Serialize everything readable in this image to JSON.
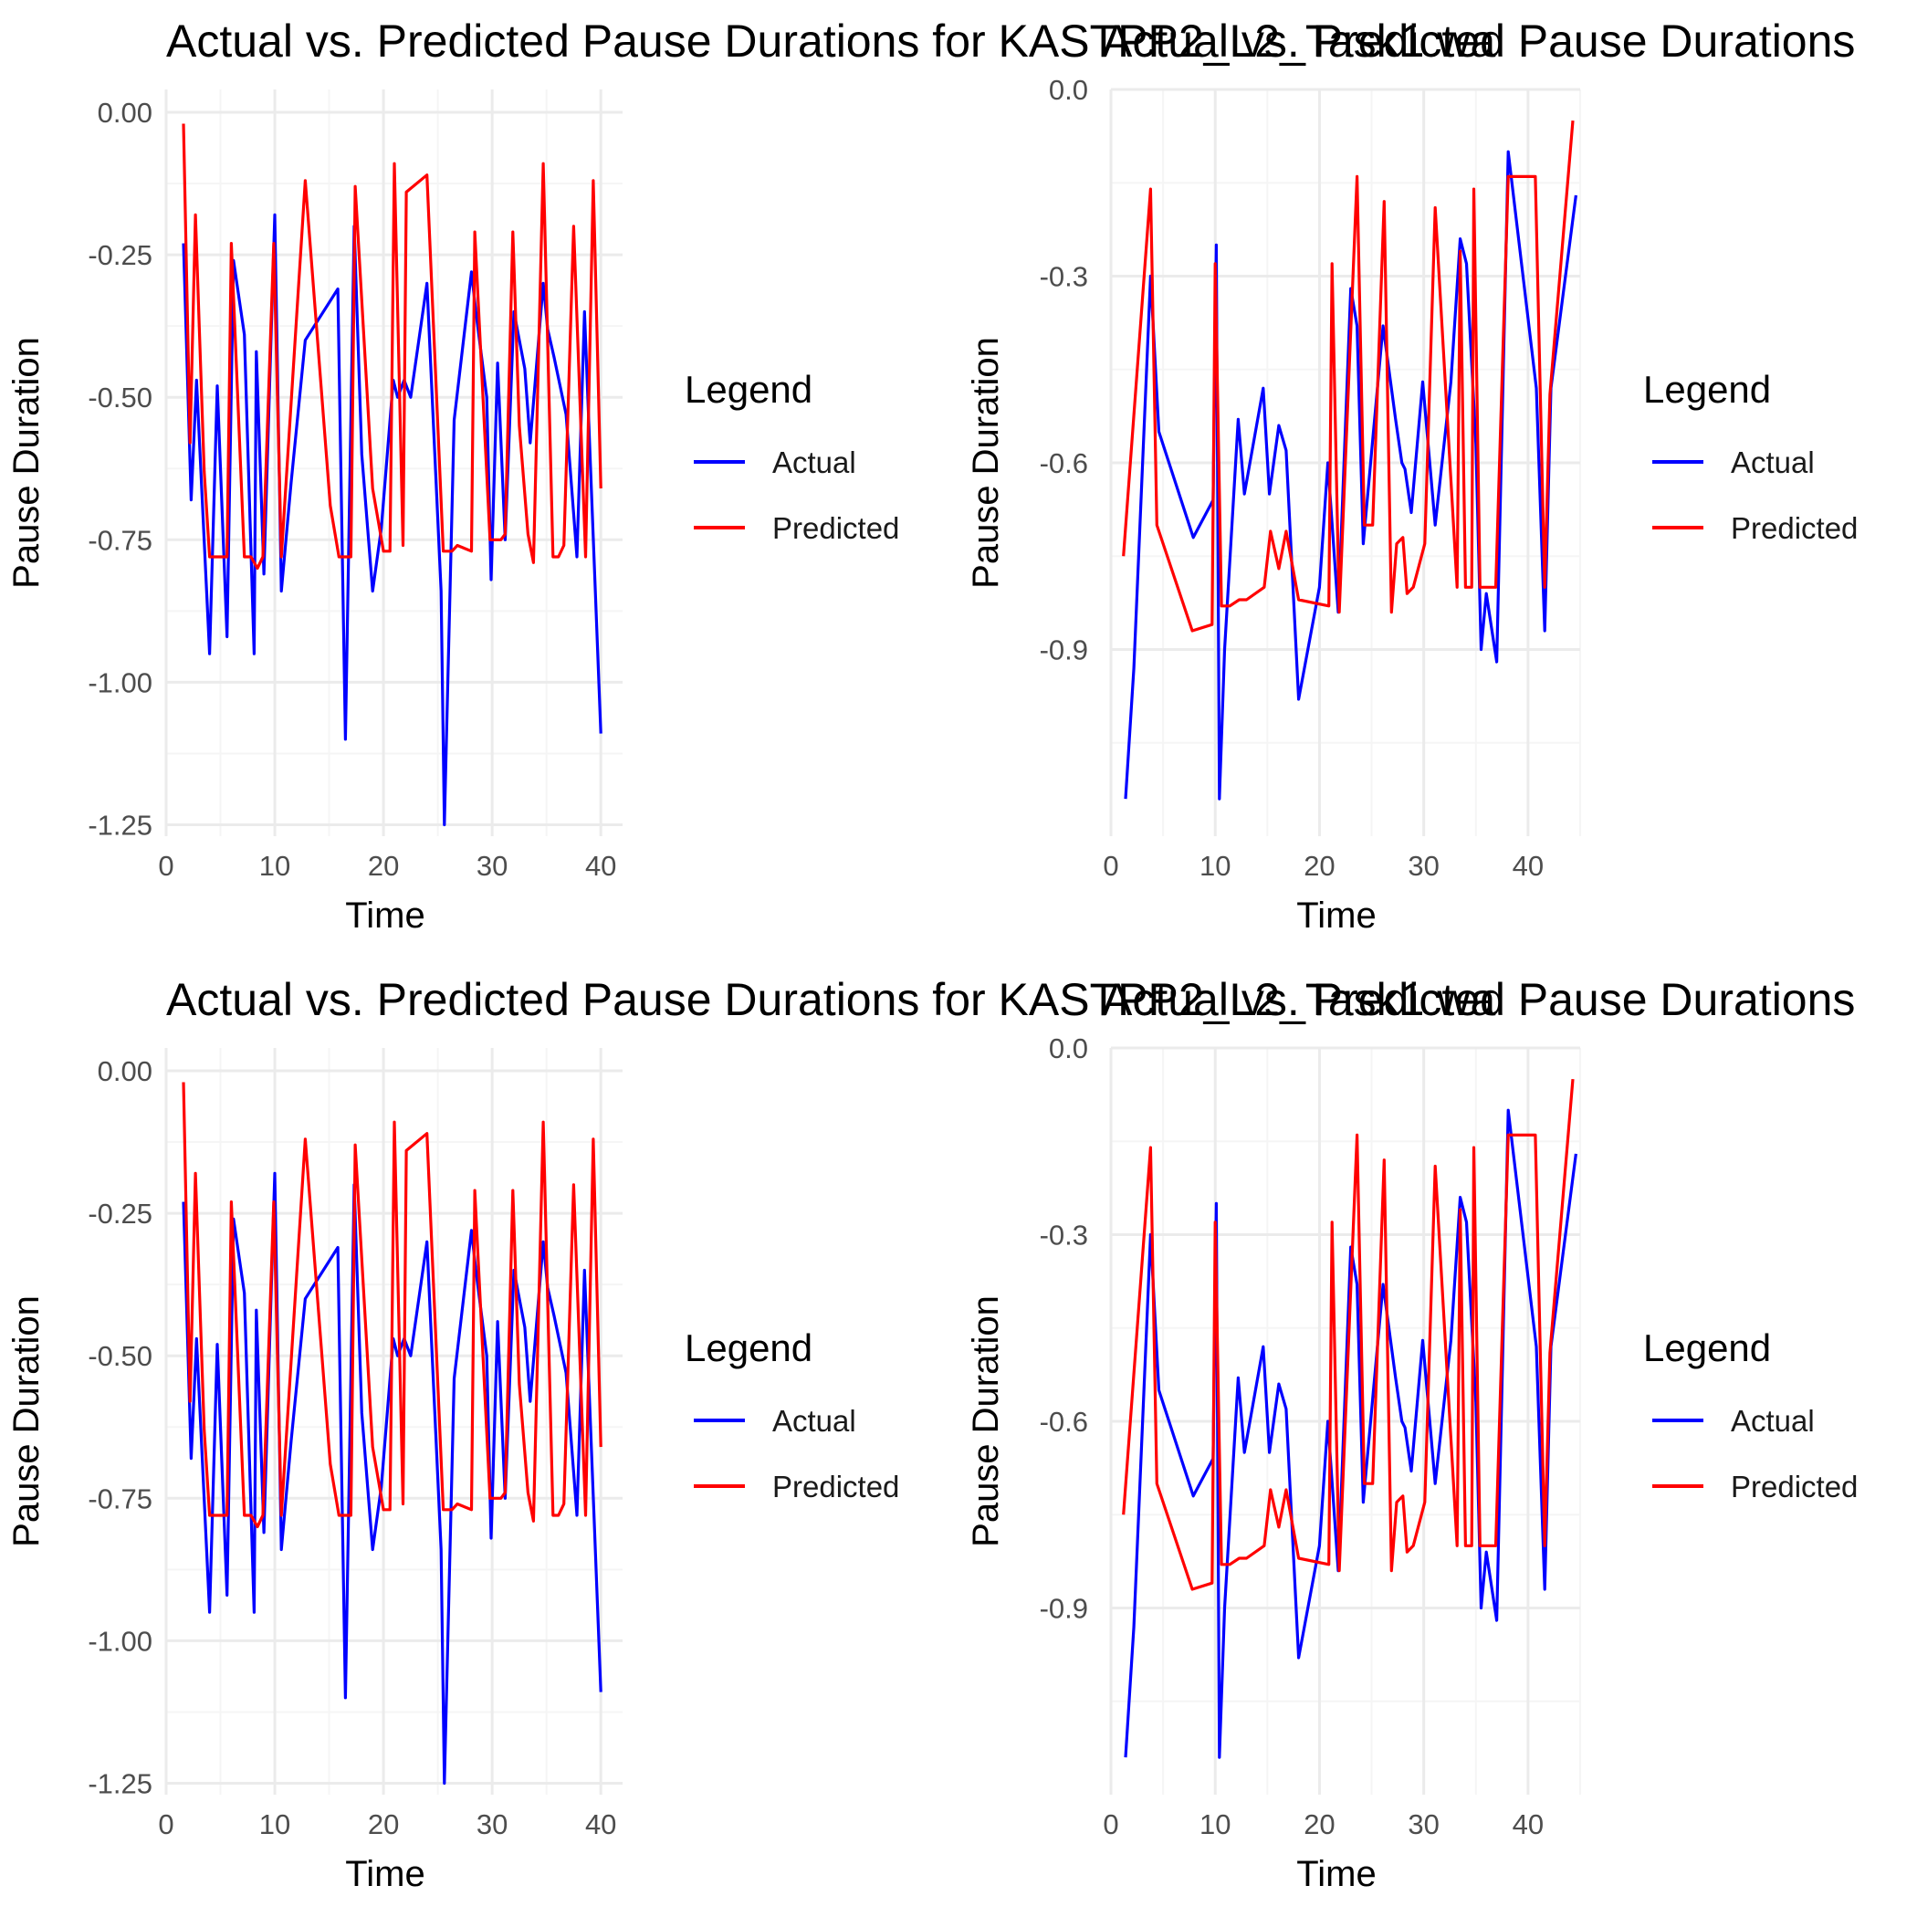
{
  "colors": {
    "actual": "#0000ff",
    "predicted": "#ff0000",
    "grid_major": "#ebebeb",
    "grid_minor": "#f5f5f5"
  },
  "chart_data": [
    {
      "type": "line",
      "title": "Actual vs. Predicted Pause Durations for KASTPP2_L2_Task1 wa",
      "xlabel": "Time",
      "ylabel": "Pause Duration",
      "xlim": [
        0,
        42
      ],
      "ylim": [
        -1.27,
        0.04
      ],
      "xticks": [
        "0",
        "10",
        "20",
        "30",
        "40"
      ],
      "yticks": [
        "0.00",
        "-0.25",
        "-0.50",
        "-0.75",
        "-1.00",
        "-1.25"
      ],
      "grid": true,
      "legend": {
        "title": "Legend",
        "position": "right",
        "entries": [
          "Actual",
          "Predicted"
        ]
      },
      "series": [
        {
          "name": "Actual",
          "color": "#0000ff",
          "x": [
            1.6,
            2.3,
            2.8,
            4.0,
            4.7,
            5.6,
            6.2,
            7.2,
            8.1,
            8.3,
            9.0,
            10.0,
            10.6,
            11.5,
            12.8,
            15.8,
            16.5,
            17.3,
            18.0,
            19.0,
            19.8,
            20.9,
            21.3,
            21.9,
            22.5,
            24.0,
            25.3,
            25.6,
            26.5,
            28.1,
            28.5,
            29.5,
            29.9,
            30.5,
            31.2,
            32.0,
            33.0,
            33.5,
            34.7,
            35.1,
            35.7,
            36.8,
            37.8,
            38.5,
            40.0
          ],
          "y": [
            -0.23,
            -0.68,
            -0.47,
            -0.95,
            -0.48,
            -0.92,
            -0.26,
            -0.39,
            -0.95,
            -0.42,
            -0.81,
            -0.18,
            -0.84,
            -0.65,
            -0.4,
            -0.31,
            -1.1,
            -0.2,
            -0.6,
            -0.84,
            -0.73,
            -0.47,
            -0.5,
            -0.47,
            -0.5,
            -0.3,
            -0.84,
            -1.25,
            -0.54,
            -0.28,
            -0.35,
            -0.5,
            -0.82,
            -0.44,
            -0.75,
            -0.35,
            -0.45,
            -0.58,
            -0.3,
            -0.38,
            -0.43,
            -0.53,
            -0.78,
            -0.35,
            -1.09
          ]
        },
        {
          "name": "Predicted",
          "color": "#ff0000",
          "x": [
            1.6,
            2.2,
            2.7,
            3.5,
            4.0,
            5.0,
            5.6,
            6.0,
            7.2,
            7.8,
            8.4,
            8.9,
            9.9,
            10.6,
            12.8,
            15.1,
            15.9,
            17.0,
            17.4,
            19.0,
            20.0,
            20.6,
            21.0,
            21.8,
            22.1,
            24.0,
            25.5,
            25.8,
            26.3,
            26.8,
            28.1,
            28.4,
            29.8,
            30.4,
            30.8,
            31.2,
            31.9,
            32.5,
            33.3,
            33.8,
            34.7,
            35.6,
            36.1,
            36.6,
            37.5,
            38.6,
            39.3,
            40.0
          ],
          "y": [
            -0.02,
            -0.58,
            -0.18,
            -0.63,
            -0.78,
            -0.78,
            -0.78,
            -0.23,
            -0.78,
            -0.78,
            -0.8,
            -0.78,
            -0.23,
            -0.78,
            -0.12,
            -0.69,
            -0.78,
            -0.78,
            -0.13,
            -0.66,
            -0.77,
            -0.77,
            -0.09,
            -0.76,
            -0.14,
            -0.11,
            -0.77,
            -0.77,
            -0.77,
            -0.76,
            -0.77,
            -0.21,
            -0.75,
            -0.75,
            -0.75,
            -0.74,
            -0.21,
            -0.55,
            -0.74,
            -0.79,
            -0.09,
            -0.78,
            -0.78,
            -0.76,
            -0.2,
            -0.78,
            -0.12,
            -0.66
          ]
        }
      ]
    },
    {
      "type": "line",
      "title": "Actual vs. Predicted Pause Durations",
      "xlabel": "Time",
      "ylabel": "Pause Duration",
      "xlim": [
        0,
        45
      ],
      "ylim": [
        -1.2,
        0.0
      ],
      "xticks": [
        "0",
        "10",
        "20",
        "30",
        "40"
      ],
      "yticks": [
        "0.0",
        "-0.3",
        "-0.6",
        "-0.9"
      ],
      "grid": true,
      "legend": {
        "title": "Legend",
        "position": "right",
        "entries": [
          "Actual",
          "Predicted"
        ]
      },
      "series": [
        {
          "name": "Actual",
          "color": "#0000ff",
          "x": [
            1.4,
            2.2,
            3.8,
            4.6,
            7.9,
            9.8,
            10.1,
            10.4,
            10.9,
            12.2,
            12.8,
            14.6,
            15.2,
            16.1,
            16.8,
            18.0,
            20.0,
            20.8,
            21.8,
            23.0,
            23.6,
            24.2,
            26.1,
            27.3,
            27.9,
            28.2,
            28.8,
            29.9,
            31.1,
            32.6,
            33.5,
            34.1,
            35.0,
            35.5,
            36.0,
            37.0,
            38.1,
            40.8,
            41.6,
            42.2,
            44.6
          ],
          "y": [
            -1.14,
            -0.93,
            -0.3,
            -0.55,
            -0.72,
            -0.66,
            -0.25,
            -1.14,
            -0.9,
            -0.53,
            -0.65,
            -0.48,
            -0.65,
            -0.54,
            -0.58,
            -0.98,
            -0.8,
            -0.6,
            -0.84,
            -0.32,
            -0.38,
            -0.73,
            -0.38,
            -0.53,
            -0.6,
            -0.61,
            -0.68,
            -0.47,
            -0.7,
            -0.47,
            -0.24,
            -0.28,
            -0.57,
            -0.9,
            -0.81,
            -0.92,
            -0.1,
            -0.48,
            -0.87,
            -0.48,
            -0.17
          ]
        },
        {
          "name": "Predicted",
          "color": "#ff0000",
          "x": [
            1.2,
            3.8,
            4.4,
            7.8,
            9.7,
            10.0,
            10.6,
            11.4,
            12.3,
            13.0,
            14.7,
            15.3,
            16.1,
            16.8,
            18.0,
            20.9,
            21.2,
            21.9,
            23.6,
            24.3,
            25.1,
            26.2,
            26.9,
            27.4,
            28.0,
            28.4,
            29.0,
            30.1,
            31.1,
            33.2,
            33.5,
            34.0,
            34.6,
            34.8,
            35.4,
            35.9,
            36.9,
            38.1,
            40.7,
            41.6,
            42.1,
            44.3
          ],
          "y": [
            -0.75,
            -0.16,
            -0.7,
            -0.87,
            -0.86,
            -0.28,
            -0.83,
            -0.83,
            -0.82,
            -0.82,
            -0.8,
            -0.71,
            -0.77,
            -0.71,
            -0.82,
            -0.83,
            -0.28,
            -0.84,
            -0.14,
            -0.7,
            -0.7,
            -0.18,
            -0.84,
            -0.73,
            -0.72,
            -0.81,
            -0.8,
            -0.73,
            -0.19,
            -0.8,
            -0.26,
            -0.8,
            -0.8,
            -0.16,
            -0.8,
            -0.8,
            -0.8,
            -0.14,
            -0.14,
            -0.8,
            -0.49,
            -0.05
          ]
        }
      ]
    },
    {
      "type": "line",
      "title": "Actual vs. Predicted Pause Durations for KASTPP2_L2_Task1 wa",
      "xlabel": "Time",
      "ylabel": "Pause Duration",
      "xlim": [
        0,
        42
      ],
      "ylim": [
        -1.27,
        0.04
      ],
      "xticks": [
        "0",
        "10",
        "20",
        "30",
        "40"
      ],
      "yticks": [
        "0.00",
        "-0.25",
        "-0.50",
        "-0.75",
        "-1.00",
        "-1.25"
      ],
      "grid": true,
      "legend": {
        "title": "Legend",
        "position": "right",
        "entries": [
          "Actual",
          "Predicted"
        ]
      },
      "series": [
        {
          "name": "Actual",
          "color": "#0000ff",
          "x": [
            1.6,
            2.3,
            2.8,
            4.0,
            4.7,
            5.6,
            6.2,
            7.2,
            8.1,
            8.3,
            9.0,
            10.0,
            10.6,
            11.5,
            12.8,
            15.8,
            16.5,
            17.3,
            18.0,
            19.0,
            19.8,
            20.9,
            21.3,
            21.9,
            22.5,
            24.0,
            25.3,
            25.6,
            26.5,
            28.1,
            28.5,
            29.5,
            29.9,
            30.5,
            31.2,
            32.0,
            33.0,
            33.5,
            34.7,
            35.1,
            35.7,
            36.8,
            37.8,
            38.5,
            40.0
          ],
          "y": [
            -0.23,
            -0.68,
            -0.47,
            -0.95,
            -0.48,
            -0.92,
            -0.26,
            -0.39,
            -0.95,
            -0.42,
            -0.81,
            -0.18,
            -0.84,
            -0.65,
            -0.4,
            -0.31,
            -1.1,
            -0.2,
            -0.6,
            -0.84,
            -0.73,
            -0.47,
            -0.5,
            -0.47,
            -0.5,
            -0.3,
            -0.84,
            -1.25,
            -0.54,
            -0.28,
            -0.35,
            -0.5,
            -0.82,
            -0.44,
            -0.75,
            -0.35,
            -0.45,
            -0.58,
            -0.3,
            -0.38,
            -0.43,
            -0.53,
            -0.78,
            -0.35,
            -1.09
          ]
        },
        {
          "name": "Predicted",
          "color": "#ff0000",
          "x": [
            1.6,
            2.2,
            2.7,
            3.5,
            4.0,
            5.0,
            5.6,
            6.0,
            7.2,
            7.8,
            8.4,
            8.9,
            9.9,
            10.6,
            12.8,
            15.1,
            15.9,
            17.0,
            17.4,
            19.0,
            20.0,
            20.6,
            21.0,
            21.8,
            22.1,
            24.0,
            25.5,
            25.8,
            26.3,
            26.8,
            28.1,
            28.4,
            29.8,
            30.4,
            30.8,
            31.2,
            31.9,
            32.5,
            33.3,
            33.8,
            34.7,
            35.6,
            36.1,
            36.6,
            37.5,
            38.6,
            39.3,
            40.0
          ],
          "y": [
            -0.02,
            -0.58,
            -0.18,
            -0.63,
            -0.78,
            -0.78,
            -0.78,
            -0.23,
            -0.78,
            -0.78,
            -0.8,
            -0.78,
            -0.23,
            -0.78,
            -0.12,
            -0.69,
            -0.78,
            -0.78,
            -0.13,
            -0.66,
            -0.77,
            -0.77,
            -0.09,
            -0.76,
            -0.14,
            -0.11,
            -0.77,
            -0.77,
            -0.77,
            -0.76,
            -0.77,
            -0.21,
            -0.75,
            -0.75,
            -0.75,
            -0.74,
            -0.21,
            -0.55,
            -0.74,
            -0.79,
            -0.09,
            -0.78,
            -0.78,
            -0.76,
            -0.2,
            -0.78,
            -0.12,
            -0.66
          ]
        }
      ]
    },
    {
      "type": "line",
      "title": "Actual vs. Predicted Pause Durations",
      "xlabel": "Time",
      "ylabel": "Pause Duration",
      "xlim": [
        0,
        45
      ],
      "ylim": [
        -1.2,
        0.0
      ],
      "xticks": [
        "0",
        "10",
        "20",
        "30",
        "40"
      ],
      "yticks": [
        "0.0",
        "-0.3",
        "-0.6",
        "-0.9"
      ],
      "grid": true,
      "legend": {
        "title": "Legend",
        "position": "right",
        "entries": [
          "Actual",
          "Predicted"
        ]
      },
      "series": [
        {
          "name": "Actual",
          "color": "#0000ff",
          "x": [
            1.4,
            2.2,
            3.8,
            4.6,
            7.9,
            9.8,
            10.1,
            10.4,
            10.9,
            12.2,
            12.8,
            14.6,
            15.2,
            16.1,
            16.8,
            18.0,
            20.0,
            20.8,
            21.8,
            23.0,
            23.6,
            24.2,
            26.1,
            27.3,
            27.9,
            28.2,
            28.8,
            29.9,
            31.1,
            32.6,
            33.5,
            34.1,
            35.0,
            35.5,
            36.0,
            37.0,
            38.1,
            40.8,
            41.6,
            42.2,
            44.6
          ],
          "y": [
            -1.14,
            -0.93,
            -0.3,
            -0.55,
            -0.72,
            -0.66,
            -0.25,
            -1.14,
            -0.9,
            -0.53,
            -0.65,
            -0.48,
            -0.65,
            -0.54,
            -0.58,
            -0.98,
            -0.8,
            -0.6,
            -0.84,
            -0.32,
            -0.38,
            -0.73,
            -0.38,
            -0.53,
            -0.6,
            -0.61,
            -0.68,
            -0.47,
            -0.7,
            -0.47,
            -0.24,
            -0.28,
            -0.57,
            -0.9,
            -0.81,
            -0.92,
            -0.1,
            -0.48,
            -0.87,
            -0.48,
            -0.17
          ]
        },
        {
          "name": "Predicted",
          "color": "#ff0000",
          "x": [
            1.2,
            3.8,
            4.4,
            7.8,
            9.7,
            10.0,
            10.6,
            11.4,
            12.3,
            13.0,
            14.7,
            15.3,
            16.1,
            16.8,
            18.0,
            20.9,
            21.2,
            21.9,
            23.6,
            24.3,
            25.1,
            26.2,
            26.9,
            27.4,
            28.0,
            28.4,
            29.0,
            30.1,
            31.1,
            33.2,
            33.5,
            34.0,
            34.6,
            34.8,
            35.4,
            35.9,
            36.9,
            38.1,
            40.7,
            41.6,
            42.1,
            44.3
          ],
          "y": [
            -0.75,
            -0.16,
            -0.7,
            -0.87,
            -0.86,
            -0.28,
            -0.83,
            -0.83,
            -0.82,
            -0.82,
            -0.8,
            -0.71,
            -0.77,
            -0.71,
            -0.82,
            -0.83,
            -0.28,
            -0.84,
            -0.14,
            -0.7,
            -0.7,
            -0.18,
            -0.84,
            -0.73,
            -0.72,
            -0.81,
            -0.8,
            -0.73,
            -0.19,
            -0.8,
            -0.26,
            -0.8,
            -0.8,
            -0.16,
            -0.8,
            -0.8,
            -0.8,
            -0.14,
            -0.14,
            -0.8,
            -0.49,
            -0.05
          ]
        }
      ]
    }
  ]
}
